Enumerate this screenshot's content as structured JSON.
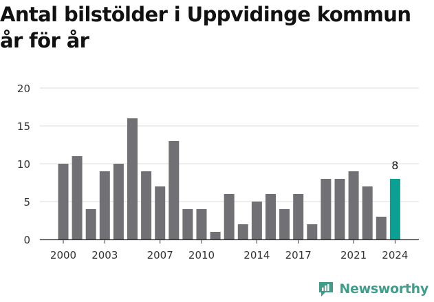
{
  "chart_data": {
    "type": "bar",
    "title": "Antal bilstölder i Uppvidinge kommun år för år",
    "xlabel": "",
    "ylabel": "",
    "categories": [
      "2000",
      "2001",
      "2002",
      "2003",
      "2004",
      "2005",
      "2006",
      "2007",
      "2008",
      "2009",
      "2010",
      "2011",
      "2012",
      "2013",
      "2014",
      "2015",
      "2016",
      "2017",
      "2018",
      "2019",
      "2020",
      "2021",
      "2022",
      "2023",
      "2024"
    ],
    "values": [
      10,
      11,
      4,
      9,
      10,
      16,
      9,
      7,
      13,
      4,
      4,
      1,
      6,
      2,
      5,
      6,
      4,
      6,
      2,
      8,
      8,
      9,
      7,
      3,
      8
    ],
    "ylim": [
      0,
      20
    ],
    "yticks": [
      0,
      5,
      10,
      15,
      20
    ],
    "xtick_labels": [
      "2000",
      "2003",
      "2007",
      "2010",
      "2014",
      "2017",
      "2021",
      "2024"
    ],
    "highlight": {
      "category": "2024",
      "label": "8"
    },
    "grid": true,
    "legend": "none",
    "colors": {
      "bar": "#717075",
      "highlight": "#0aa193",
      "grid": "#dcdcdc",
      "axis": "#333333",
      "text": "#333333"
    }
  },
  "brand": {
    "name": "Newsworthy",
    "icon": "newsworthy-logo-icon",
    "color": "#3f9d8a"
  }
}
